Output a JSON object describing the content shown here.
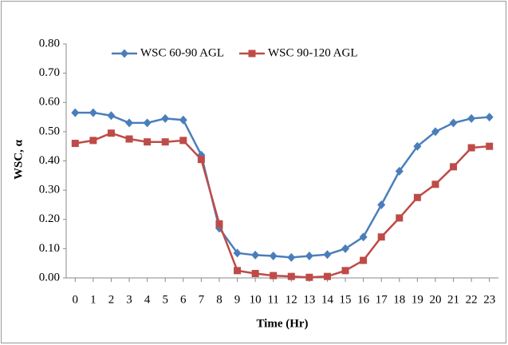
{
  "chart_data": {
    "type": "line",
    "x_label": "Time (Hr)",
    "y_label": "WSC, α",
    "x": [
      0,
      1,
      2,
      3,
      4,
      5,
      6,
      7,
      8,
      9,
      10,
      11,
      12,
      13,
      14,
      15,
      16,
      17,
      18,
      19,
      20,
      21,
      22,
      23
    ],
    "series": [
      {
        "name": "WSC 60-90 AGL",
        "color": "#4a7ebb",
        "marker": "diamond",
        "values": [
          0.565,
          0.565,
          0.555,
          0.53,
          0.53,
          0.545,
          0.54,
          0.42,
          0.17,
          0.085,
          0.078,
          0.075,
          0.07,
          0.075,
          0.08,
          0.1,
          0.14,
          0.25,
          0.365,
          0.45,
          0.5,
          0.53,
          0.545,
          0.55
        ]
      },
      {
        "name": "WSC 90-120 AGL",
        "color": "#be4b48",
        "marker": "square",
        "values": [
          0.46,
          0.47,
          0.495,
          0.475,
          0.465,
          0.465,
          0.47,
          0.405,
          0.185,
          0.025,
          0.015,
          0.008,
          0.005,
          0.002,
          0.005,
          0.025,
          0.06,
          0.14,
          0.205,
          0.275,
          0.32,
          0.38,
          0.445,
          0.45
        ]
      }
    ],
    "xlim": [
      -0.5,
      23.5
    ],
    "xticks": [
      0,
      1,
      2,
      3,
      4,
      5,
      6,
      7,
      8,
      9,
      10,
      11,
      12,
      13,
      14,
      15,
      16,
      17,
      18,
      19,
      20,
      21,
      22,
      23
    ],
    "ylim": [
      0,
      0.8
    ],
    "yticks": [
      {
        "value": 0,
        "label": "0.00"
      },
      {
        "value": 0.1,
        "label": "0.10"
      },
      {
        "value": 0.2,
        "label": "0.20"
      },
      {
        "value": 0.3,
        "label": "0.30"
      },
      {
        "value": 0.4,
        "label": "0.40"
      },
      {
        "value": 0.5,
        "label": "0.50"
      },
      {
        "value": 0.6,
        "label": "0.60"
      },
      {
        "value": 0.7,
        "label": "0.70"
      },
      {
        "value": 0.8,
        "label": "0.80"
      }
    ],
    "grid": false,
    "legend": "top"
  }
}
